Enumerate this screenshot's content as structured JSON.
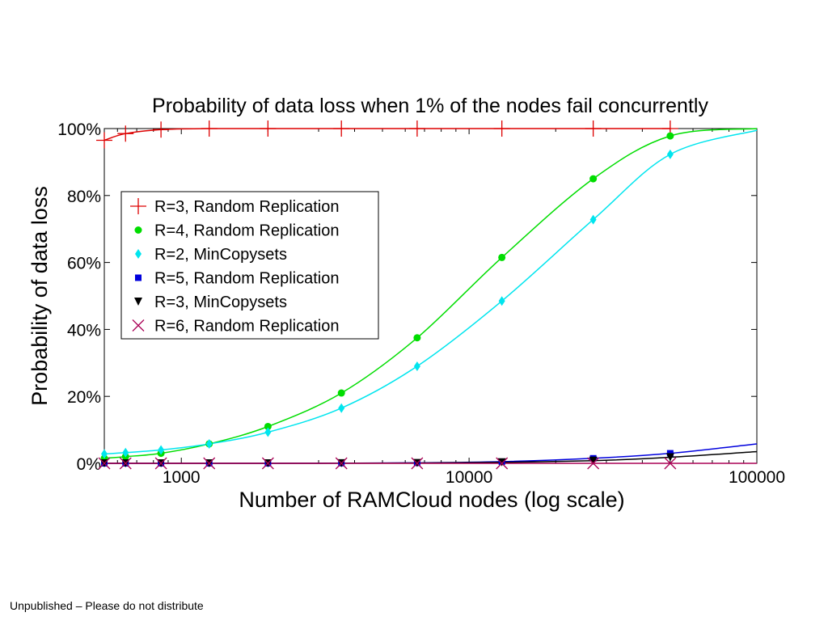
{
  "footer": "Unpublished – Please do not distribute",
  "chart_data": {
    "type": "line",
    "title": "Probability of data loss when 1% of the nodes fail concurrently",
    "xlabel": "Number of RAMCloud nodes (log scale)",
    "ylabel": "Probability of data loss",
    "x_scale": "log",
    "xlim": [
      540,
      100000
    ],
    "ylim": [
      0,
      100
    ],
    "x_ticks": [
      1000,
      10000,
      100000
    ],
    "x_tick_labels": [
      "1000",
      "10000",
      "100000"
    ],
    "y_ticks": [
      0,
      20,
      40,
      60,
      80,
      100
    ],
    "y_tick_labels": [
      "0%",
      "20%",
      "40%",
      "60%",
      "80%",
      "100%"
    ],
    "grid": false,
    "legend_position": "upper-left",
    "series": [
      {
        "name": "R=3, Random Replication",
        "marker": "plus",
        "color": "#dd0000",
        "x": [
          540,
          640,
          850,
          1250,
          2000,
          3600,
          6600,
          13000,
          27000,
          50000
        ],
        "y": [
          96.5,
          98.5,
          99.7,
          100,
          100,
          100,
          100,
          100,
          100,
          100
        ]
      },
      {
        "name": "R=4, Random Replication",
        "marker": "circle",
        "color": "#00dd00",
        "x": [
          540,
          640,
          850,
          1250,
          2000,
          3600,
          6600,
          13000,
          27000,
          50000,
          100000
        ],
        "y": [
          1.5,
          2,
          3,
          5.8,
          11,
          21,
          37.5,
          61.5,
          85,
          97.8,
          100
        ]
      },
      {
        "name": "R=2, MinCopysets",
        "marker": "diamond",
        "color": "#00e5ee",
        "x": [
          540,
          640,
          850,
          1250,
          2000,
          3600,
          6600,
          13000,
          27000,
          50000,
          100000
        ],
        "y": [
          2.8,
          3.2,
          4,
          5.8,
          9.3,
          16.5,
          29,
          48.5,
          72.8,
          92.3,
          99.5
        ]
      },
      {
        "name": "R=5, Random Replication",
        "marker": "square",
        "color": "#0000dd",
        "x": [
          540,
          640,
          850,
          1250,
          2000,
          3600,
          6600,
          13000,
          27000,
          50000,
          100000
        ],
        "y": [
          0,
          0,
          0,
          0,
          0,
          0.05,
          0.15,
          0.5,
          1.5,
          3,
          5.8
        ]
      },
      {
        "name": "R=3, MinCopysets",
        "marker": "triangle-down",
        "color": "#000000",
        "x": [
          540,
          640,
          850,
          1250,
          2000,
          3600,
          6600,
          13000,
          27000,
          50000,
          100000
        ],
        "y": [
          0,
          0,
          0,
          0,
          0,
          0.02,
          0.1,
          0.3,
          0.8,
          1.8,
          3.5
        ]
      },
      {
        "name": "R=6, Random Replication",
        "marker": "x",
        "color": "#aa0055",
        "x": [
          540,
          640,
          850,
          1250,
          2000,
          3600,
          6600,
          13000,
          27000,
          50000,
          100000
        ],
        "y": [
          0,
          0,
          0,
          0,
          0,
          0,
          0,
          0,
          0,
          0,
          0
        ]
      }
    ]
  }
}
